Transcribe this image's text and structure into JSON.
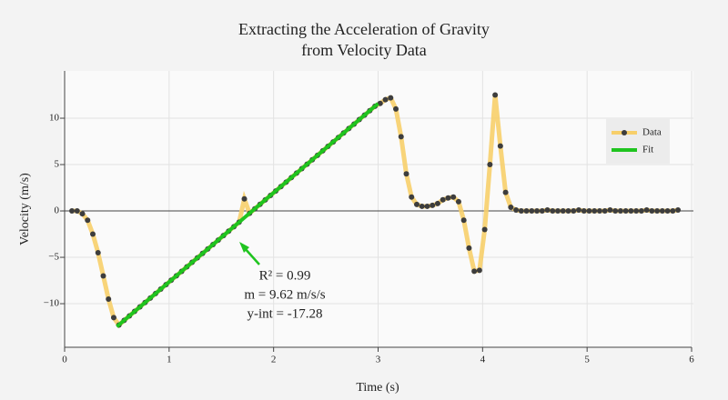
{
  "chart_data": {
    "type": "line",
    "title": [
      "Extracting the Acceleration of Gravity",
      "from Velocity Data"
    ],
    "x_label": "Time (s)",
    "y_label": "Velocity (m/s)",
    "xlim": [
      0,
      6
    ],
    "xticks": [
      0,
      1,
      2,
      3,
      4,
      5,
      6
    ],
    "ylim": [
      -14.7,
      15.1
    ],
    "yticks": [
      {
        "value": -10,
        "label": "−10"
      },
      {
        "value": -5,
        "label": "−5"
      },
      0,
      5,
      10
    ],
    "grid": true,
    "legend": "upper right",
    "series": [
      {
        "name": "Data",
        "color": "#f7cf6a",
        "marker_color": "#3d3d3d",
        "x": [
          0.07,
          0.12,
          0.17,
          0.22,
          0.27,
          0.32,
          0.37,
          0.42,
          0.47,
          0.52,
          0.57,
          0.62,
          0.67,
          0.72,
          0.77,
          0.82,
          0.87,
          0.92,
          0.97,
          1.02,
          1.07,
          1.12,
          1.17,
          1.22,
          1.27,
          1.32,
          1.37,
          1.42,
          1.47,
          1.52,
          1.57,
          1.62,
          1.67,
          1.72,
          1.77,
          1.82,
          1.87,
          1.92,
          1.97,
          2.02,
          2.07,
          2.12,
          2.17,
          2.22,
          2.27,
          2.32,
          2.37,
          2.42,
          2.47,
          2.52,
          2.57,
          2.62,
          2.67,
          2.72,
          2.77,
          2.82,
          2.87,
          2.92,
          2.97,
          3.02,
          3.07,
          3.12,
          3.17,
          3.22,
          3.27,
          3.32,
          3.37,
          3.42,
          3.47,
          3.52,
          3.57,
          3.62,
          3.67,
          3.72,
          3.77,
          3.82,
          3.87,
          3.92,
          3.97,
          4.02,
          4.07,
          4.12,
          4.17,
          4.22,
          4.27,
          4.32,
          4.37,
          4.42,
          4.47,
          4.52,
          4.57,
          4.62,
          4.67,
          4.72,
          4.77,
          4.82,
          4.87,
          4.92,
          4.97,
          5.02,
          5.07,
          5.12,
          5.17,
          5.22,
          5.27,
          5.32,
          5.37,
          5.42,
          5.47,
          5.52,
          5.57,
          5.62,
          5.67,
          5.72,
          5.77,
          5.82,
          5.87
        ],
        "values": [
          0,
          0,
          -0.3,
          -1,
          -2.5,
          -4.5,
          -7,
          -9.5,
          -11.5,
          -12.3,
          -11.8,
          -11.32,
          -10.83,
          -10.35,
          -9.87,
          -9.39,
          -8.91,
          -8.43,
          -7.95,
          -7.47,
          -6.99,
          -6.51,
          -6.02,
          -5.54,
          -5.06,
          -4.58,
          -4.1,
          -3.62,
          -3.14,
          -2.66,
          -2.18,
          -1.7,
          -1.21,
          1.3,
          -0.25,
          0.23,
          0.71,
          1.19,
          1.67,
          2.15,
          2.63,
          3.11,
          3.6,
          4.08,
          4.56,
          5.04,
          5.52,
          6,
          6.48,
          6.96,
          7.44,
          7.92,
          8.41,
          8.89,
          9.37,
          9.85,
          10.33,
          10.81,
          11.29,
          11.6,
          12,
          12.2,
          11,
          8,
          4,
          1.5,
          0.7,
          0.5,
          0.5,
          0.6,
          0.8,
          1.2,
          1.4,
          1.5,
          1,
          -1,
          -4,
          -6.5,
          -6.4,
          -2,
          5,
          12.5,
          7,
          2,
          0.4,
          0.1,
          0,
          0,
          0,
          0,
          0,
          0.1,
          0,
          0,
          0,
          0,
          0,
          0.1,
          0,
          0,
          0,
          0,
          0,
          0.1,
          0,
          0,
          0,
          0,
          0,
          0,
          0.1,
          0,
          0,
          0,
          0,
          0,
          0.1
        ]
      },
      {
        "name": "Fit",
        "color": "#1fc41f",
        "x": [
          0.5,
          3.0
        ],
        "values": [
          -12.47,
          11.58
        ]
      }
    ],
    "annotations": [
      "R² = 0.99",
      "m = 9.62 m/s/s",
      "y-int = -17.28"
    ]
  }
}
